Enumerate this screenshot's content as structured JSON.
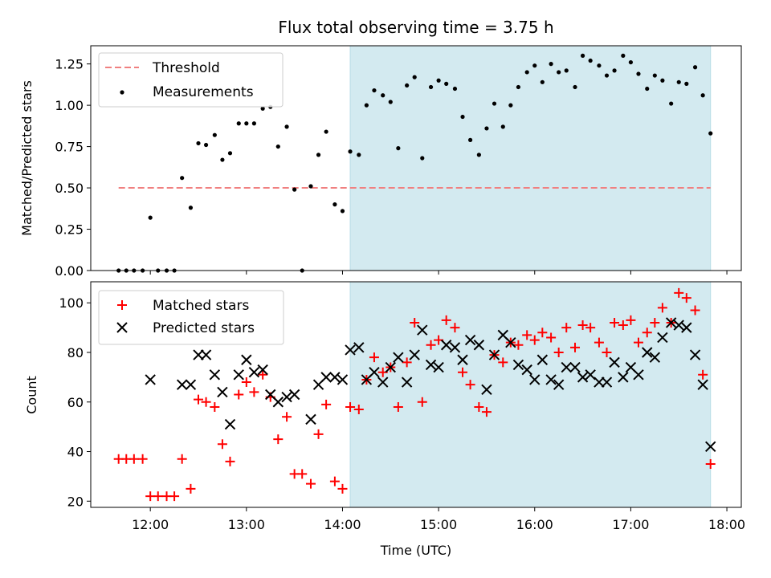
{
  "chart_data": {
    "title": "Flux total observing time = 3.75 h",
    "xlabel": "Time (UTC)",
    "x_ticks": [
      "12:00",
      "13:00",
      "14:00",
      "15:00",
      "16:00",
      "17:00",
      "18:00"
    ],
    "x_tick_hours": [
      12,
      13,
      14,
      15,
      16,
      17,
      18
    ],
    "xlim_hours": [
      11.38,
      18.15
    ],
    "shaded_interval_hours": [
      14.08,
      17.83
    ],
    "shade_color": "#d3eaf0",
    "panels": [
      {
        "type": "scatter",
        "ylabel": "Matched/Predicted stars",
        "ylim": [
          0,
          1.36
        ],
        "yticks": [
          "0.00",
          "0.25",
          "0.50",
          "0.75",
          "1.00",
          "1.25"
        ],
        "ytick_values": [
          0,
          0.25,
          0.5,
          0.75,
          1.0,
          1.25
        ],
        "threshold": {
          "name": "Threshold",
          "value": 0.5,
          "x_range": [
            11.67,
            17.83
          ],
          "color": "#f08080"
        },
        "series": [
          {
            "name": "Measurements",
            "marker": "dot",
            "color": "#000000",
            "x": [
              11.67,
              11.75,
              11.83,
              11.92,
              12.0,
              12.08,
              12.17,
              12.25,
              12.33,
              12.42,
              12.5,
              12.58,
              12.67,
              12.75,
              12.83,
              12.92,
              13.0,
              13.08,
              13.17,
              13.25,
              13.33,
              13.42,
              13.5,
              13.58,
              13.67,
              13.75,
              13.83,
              13.92,
              14.0,
              14.08,
              14.17,
              14.25,
              14.33,
              14.42,
              14.5,
              14.58,
              14.67,
              14.75,
              14.83,
              14.92,
              15.0,
              15.08,
              15.17,
              15.25,
              15.33,
              15.42,
              15.5,
              15.58,
              15.67,
              15.75,
              15.83,
              15.92,
              16.0,
              16.08,
              16.17,
              16.25,
              16.33,
              16.42,
              16.5,
              16.58,
              16.67,
              16.75,
              16.83,
              16.92,
              17.0,
              17.08,
              17.17,
              17.25,
              17.33,
              17.42,
              17.5,
              17.58,
              17.67,
              17.75,
              17.83
            ],
            "y": [
              0.0,
              0.0,
              0.0,
              0.0,
              0.32,
              0.0,
              0.0,
              0.0,
              0.56,
              0.38,
              0.77,
              0.76,
              0.82,
              0.67,
              0.71,
              0.89,
              0.89,
              0.89,
              0.98,
              0.99,
              0.75,
              0.87,
              0.49,
              0.0,
              0.51,
              0.7,
              0.84,
              0.4,
              0.36,
              0.72,
              0.7,
              1.0,
              1.09,
              1.06,
              1.02,
              0.74,
              1.12,
              1.17,
              0.68,
              1.11,
              1.15,
              1.13,
              1.1,
              0.93,
              0.79,
              0.7,
              0.86,
              1.01,
              0.87,
              1.0,
              1.11,
              1.2,
              1.24,
              1.14,
              1.25,
              1.2,
              1.21,
              1.11,
              1.3,
              1.27,
              1.24,
              1.18,
              1.21,
              1.3,
              1.26,
              1.19,
              1.1,
              1.18,
              1.15,
              1.01,
              1.14,
              1.13,
              1.23,
              1.06,
              0.83
            ]
          }
        ],
        "legend": {
          "placement": "upper-left",
          "entries": [
            "Threshold",
            "Measurements"
          ]
        }
      },
      {
        "type": "scatter",
        "ylabel": "Count",
        "ylim": [
          17.5,
          108.5
        ],
        "yticks": [
          "20",
          "40",
          "60",
          "80",
          "100"
        ],
        "ytick_values": [
          20,
          40,
          60,
          80,
          100
        ],
        "series": [
          {
            "name": "Matched stars",
            "marker": "plus",
            "color": "#ff0000",
            "x": [
              11.67,
              11.75,
              11.83,
              11.92,
              12.0,
              12.08,
              12.17,
              12.25,
              12.33,
              12.42,
              12.5,
              12.58,
              12.67,
              12.75,
              12.83,
              12.92,
              13.0,
              13.08,
              13.17,
              13.25,
              13.33,
              13.42,
              13.5,
              13.58,
              13.67,
              13.75,
              13.83,
              13.92,
              14.0,
              14.08,
              14.17,
              14.25,
              14.33,
              14.42,
              14.5,
              14.58,
              14.67,
              14.75,
              14.83,
              14.92,
              15.0,
              15.08,
              15.17,
              15.25,
              15.33,
              15.42,
              15.5,
              15.58,
              15.67,
              15.75,
              15.83,
              15.92,
              16.0,
              16.08,
              16.17,
              16.25,
              16.33,
              16.42,
              16.5,
              16.58,
              16.67,
              16.75,
              16.83,
              16.92,
              17.0,
              17.08,
              17.17,
              17.25,
              17.33,
              17.42,
              17.5,
              17.58,
              17.67,
              17.75,
              17.83
            ],
            "y": [
              37,
              37,
              37,
              37,
              22,
              22,
              22,
              22,
              37,
              25,
              61,
              60,
              58,
              43,
              36,
              63,
              68,
              64,
              71,
              62,
              45,
              54,
              31,
              31,
              27,
              47,
              59,
              28,
              25,
              58,
              57,
              69,
              78,
              72,
              74,
              58,
              76,
              92,
              60,
              83,
              85,
              93,
              90,
              72,
              67,
              58,
              56,
              79,
              76,
              84,
              83,
              87,
              85,
              88,
              86,
              80,
              90,
              82,
              91,
              90,
              84,
              80,
              92,
              91,
              93,
              84,
              88,
              92,
              98,
              92,
              104,
              102,
              97,
              71,
              35
            ]
          },
          {
            "name": "Predicted stars",
            "marker": "x",
            "color": "#000000",
            "x": [
              12.0,
              12.33,
              12.42,
              12.5,
              12.58,
              12.67,
              12.75,
              12.83,
              12.92,
              13.0,
              13.08,
              13.17,
              13.25,
              13.33,
              13.42,
              13.5,
              13.67,
              13.75,
              13.83,
              13.92,
              14.0,
              14.08,
              14.17,
              14.25,
              14.33,
              14.42,
              14.5,
              14.58,
              14.67,
              14.75,
              14.83,
              14.92,
              15.0,
              15.08,
              15.17,
              15.25,
              15.33,
              15.42,
              15.5,
              15.58,
              15.67,
              15.75,
              15.83,
              15.92,
              16.0,
              16.08,
              16.17,
              16.25,
              16.33,
              16.42,
              16.5,
              16.58,
              16.67,
              16.75,
              16.83,
              16.92,
              17.0,
              17.08,
              17.17,
              17.25,
              17.33,
              17.42,
              17.5,
              17.58,
              17.67,
              17.75,
              17.83
            ],
            "y": [
              69,
              67,
              67,
              79,
              79,
              71,
              64,
              51,
              71,
              77,
              72,
              73,
              63,
              60,
              62,
              63,
              53,
              67,
              70,
              70,
              69,
              81,
              82,
              69,
              72,
              68,
              74,
              78,
              68,
              79,
              89,
              75,
              74,
              83,
              82,
              77,
              85,
              83,
              65,
              79,
              87,
              84,
              75,
              73,
              69,
              77,
              69,
              67,
              74,
              74,
              70,
              71,
              68,
              68,
              76,
              70,
              74,
              71,
              80,
              78,
              86,
              92,
              91,
              90,
              79,
              67,
              42
            ]
          }
        ],
        "legend": {
          "placement": "upper-left",
          "entries": [
            "Matched stars",
            "Predicted stars"
          ]
        }
      }
    ]
  }
}
